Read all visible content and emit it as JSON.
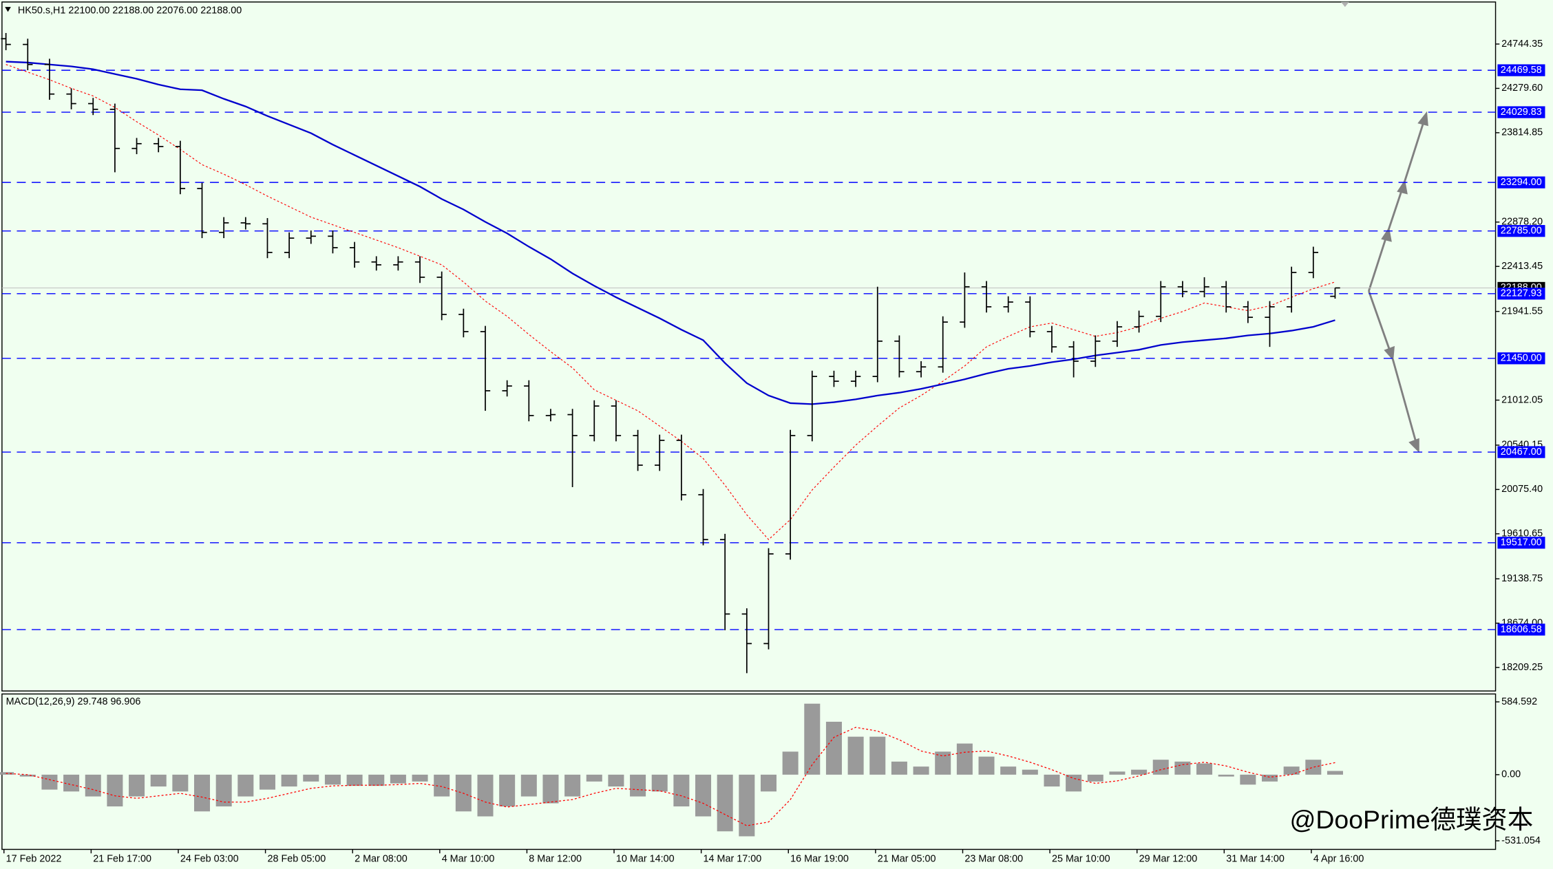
{
  "chart_data": {
    "type": "ohlc",
    "title": "HK50.s,H1  22100.00 22188.00 22076.00 22188.00",
    "color": "#000000",
    "categories": [
      "17 Feb 2022",
      null,
      null,
      null,
      "21 Feb 17:00",
      null,
      null,
      null,
      "24 Feb 03:00",
      null,
      null,
      null,
      "28 Feb 05:00",
      null,
      null,
      null,
      "2 Mar 08:00",
      null,
      null,
      null,
      "4 Mar 10:00",
      null,
      null,
      null,
      "8 Mar 12:00",
      null,
      null,
      null,
      "10 Mar 14:00",
      null,
      null,
      null,
      "14 Mar 17:00",
      null,
      null,
      null,
      "16 Mar 19:00",
      null,
      null,
      null,
      "21 Mar 05:00",
      null,
      null,
      null,
      "23 Mar 08:00",
      null,
      null,
      null,
      "25 Mar 10:00",
      null,
      null,
      null,
      "29 Mar 12:00",
      null,
      null,
      null,
      "31 Mar 14:00",
      null,
      null,
      null,
      "4 Apr 16:00",
      null
    ],
    "open": [
      24800,
      24740,
      24530,
      24220,
      24120,
      24060,
      23650,
      23700,
      23670,
      23230,
      22770,
      22870,
      22860,
      22560,
      22710,
      22730,
      22610,
      22460,
      22430,
      22460,
      22300,
      21910,
      21730,
      21110,
      21160,
      20850,
      20860,
      20640,
      20950,
      20640,
      20330,
      20590,
      20020,
      19550,
      18770,
      18460,
      19400,
      20640,
      21260,
      21210,
      21260,
      21630,
      21310,
      21360,
      21830,
      22200,
      21990,
      22040,
      21730,
      21570,
      21420,
      21630,
      21780,
      21890,
      22200,
      22150,
      22200,
      21990,
      21880,
      21990,
      22350,
      22100
    ],
    "high": [
      24860,
      24800,
      24590,
      24280,
      24180,
      24120,
      23760,
      23760,
      23730,
      23290,
      22930,
      22930,
      22920,
      22770,
      22790,
      22790,
      22670,
      22520,
      22520,
      22520,
      22360,
      21970,
      21790,
      21220,
      21220,
      20920,
      20920,
      21010,
      21010,
      20700,
      20650,
      20650,
      20080,
      19610,
      18830,
      19460,
      20700,
      21320,
      21320,
      21320,
      22200,
      21690,
      21420,
      21890,
      22350,
      22260,
      22100,
      22100,
      21790,
      21630,
      21690,
      21840,
      21950,
      22260,
      22260,
      22300,
      22260,
      22050,
      22050,
      22410,
      22620,
      22188
    ],
    "low": [
      24680,
      24470,
      24160,
      24060,
      24000,
      23400,
      23590,
      23610,
      23170,
      22710,
      22710,
      22800,
      22500,
      22500,
      22650,
      22550,
      22400,
      22370,
      22370,
      22240,
      21850,
      21670,
      20900,
      21050,
      20790,
      20790,
      20100,
      20580,
      20580,
      20270,
      20270,
      19960,
      19490,
      18600,
      18150,
      18400,
      19340,
      20580,
      21150,
      21150,
      21200,
      21250,
      21250,
      21300,
      21770,
      21930,
      21930,
      21670,
      21510,
      21250,
      21360,
      21570,
      21720,
      21830,
      22090,
      22090,
      21930,
      21820,
      21570,
      21930,
      22290,
      22076
    ],
    "close": [
      24740,
      24530,
      24220,
      24120,
      24060,
      23650,
      23700,
      23670,
      23230,
      22770,
      22870,
      22860,
      22560,
      22710,
      22730,
      22610,
      22460,
      22430,
      22460,
      22300,
      21910,
      21730,
      21110,
      21160,
      20850,
      20860,
      20640,
      20950,
      20640,
      20330,
      20590,
      20020,
      19550,
      18770,
      18460,
      19400,
      20640,
      21260,
      21210,
      21260,
      21630,
      21310,
      21360,
      21830,
      22200,
      21990,
      22040,
      21730,
      21570,
      21420,
      21630,
      21780,
      21890,
      22200,
      22150,
      22200,
      21990,
      21880,
      21990,
      22350,
      22560,
      22188
    ],
    "moving_averages": [
      {
        "color": "#ff0000",
        "values": [
          24530,
          24450,
          24370,
          24280,
          24200,
          24080,
          23930,
          23790,
          23640,
          23480,
          23380,
          23270,
          23150,
          23040,
          22930,
          22850,
          22770,
          22690,
          22610,
          22520,
          22430,
          22250,
          22050,
          21890,
          21700,
          21520,
          21350,
          21120,
          21010,
          20900,
          20740,
          20580,
          20400,
          20120,
          19810,
          19550,
          19760,
          20070,
          20310,
          20540,
          20740,
          20930,
          21060,
          21210,
          21370,
          21570,
          21680,
          21780,
          21820,
          21750,
          21680,
          21720,
          21780,
          21870,
          21940,
          22030,
          21990,
          21950,
          22000,
          22090,
          22180,
          22250
        ]
      },
      {
        "color": "#0000cd",
        "values": [
          24560,
          24550,
          24530,
          24510,
          24480,
          24430,
          24380,
          24320,
          24270,
          24260,
          24170,
          24090,
          23990,
          23900,
          23810,
          23690,
          23580,
          23470,
          23360,
          23250,
          23120,
          23010,
          22880,
          22760,
          22620,
          22490,
          22340,
          22210,
          22090,
          21980,
          21870,
          21750,
          21640,
          21400,
          21190,
          21060,
          20980,
          20970,
          20990,
          21020,
          21060,
          21090,
          21130,
          21180,
          21230,
          21290,
          21340,
          21370,
          21410,
          21440,
          21480,
          21510,
          21540,
          21590,
          21620,
          21640,
          21660,
          21690,
          21710,
          21740,
          21780,
          21850
        ]
      }
    ],
    "ylim": [
      17963,
      25185
    ],
    "yticks": [
      24744.35,
      {
        "value": 24279.6,
        "label": "24279.60"
      },
      23814.85,
      {
        "value": 22878.2,
        "label": "22878.20"
      },
      22413.45,
      21941.55,
      21012.05,
      20540.15,
      {
        "value": 20075.4,
        "label": "20075.40"
      },
      19610.65,
      19138.75,
      {
        "value": 18674,
        "label": "18674.00"
      },
      18209.25
    ],
    "levels": [
      24469.58,
      24029.83,
      {
        "value": 23294,
        "label": "23294.00"
      },
      {
        "value": 22785,
        "label": "22785.00"
      },
      22127.93,
      {
        "value": 21450,
        "label": "21450.00"
      },
      {
        "value": 20467,
        "label": "20467.00"
      },
      {
        "value": 19517,
        "label": "19517.00"
      },
      18606.58
    ],
    "level_color": "#0000ff",
    "last_price": {
      "value": 22188,
      "label": "22188.00"
    },
    "indicator": {
      "title": "MACD(12,26,9) 29.748 96.906",
      "color": "#9a9a9a",
      "signal_color": "#ff0000",
      "values": [
        20,
        -15,
        -120,
        -135,
        -175,
        -255,
        -175,
        -95,
        -135,
        -295,
        -255,
        -175,
        -120,
        -95,
        -55,
        -80,
        -90,
        -90,
        -70,
        -55,
        -175,
        -295,
        -335,
        -255,
        -175,
        -230,
        -175,
        -55,
        -95,
        -175,
        -135,
        -255,
        -335,
        -455,
        -495,
        -135,
        185,
        570,
        425,
        305,
        305,
        105,
        65,
        185,
        250,
        145,
        65,
        40,
        -95,
        -135,
        -55,
        25,
        40,
        120,
        105,
        90,
        -15,
        -80,
        -55,
        65,
        120,
        29.748
      ],
      "signal": [
        10,
        0,
        -40,
        -80,
        -120,
        -170,
        -190,
        -170,
        -150,
        -180,
        -220,
        -220,
        -190,
        -150,
        -110,
        -90,
        -85,
        -85,
        -80,
        -70,
        -95,
        -150,
        -220,
        -260,
        -240,
        -220,
        -200,
        -150,
        -110,
        -120,
        -130,
        -170,
        -230,
        -320,
        -410,
        -380,
        -200,
        80,
        300,
        380,
        350,
        280,
        190,
        150,
        180,
        190,
        150,
        100,
        40,
        -30,
        -70,
        -50,
        -10,
        40,
        80,
        100,
        70,
        20,
        -20,
        0,
        60,
        96.906
      ],
      "ylim": [
        -600,
        648
      ],
      "yticks": [
        584.592,
        {
          "value": 0,
          "label": "0.00"
        },
        -531.054
      ]
    },
    "watermark": "@DooPrime德璞资本"
  }
}
